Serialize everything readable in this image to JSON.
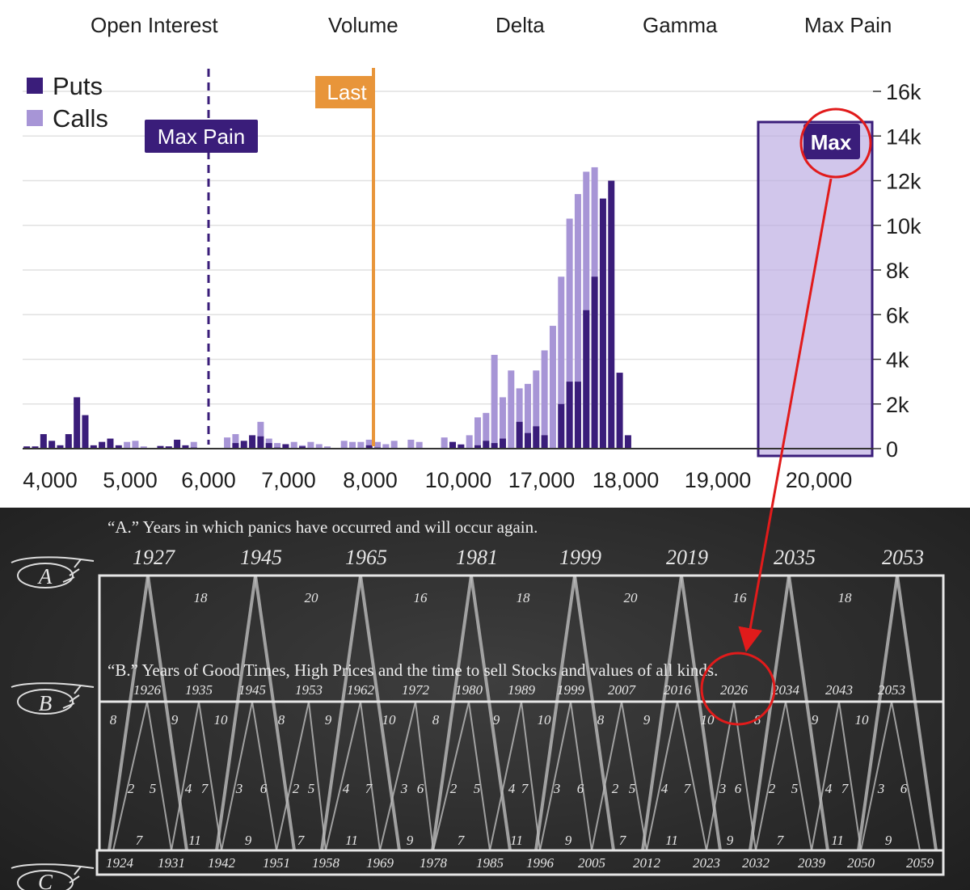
{
  "tabs": [
    "Open Interest",
    "Volume",
    "Delta",
    "Gamma",
    "Max Pain"
  ],
  "colors": {
    "puts": "#3a1d7a",
    "calls": "#a795d6",
    "last": "#e8953a",
    "highlight": "#6f52b8",
    "annotation": "#e11b1b"
  },
  "chart_data": {
    "type": "bar",
    "title": "Open Interest",
    "legend": [
      {
        "name": "Puts",
        "color": "#3a1d7a"
      },
      {
        "name": "Calls",
        "color": "#a795d6"
      }
    ],
    "legend_position": "top-left",
    "x_tick_labels": [
      "4,000",
      "5,000",
      "6,000",
      "7,000",
      "8,000",
      "10,000",
      "17,000",
      "18,000",
      "19,000",
      "20,000"
    ],
    "y_ticks": [
      0,
      2000,
      4000,
      6000,
      8000,
      10000,
      12000,
      14000,
      16000
    ],
    "y_tick_labels": [
      "0",
      "2k",
      "4k",
      "6k",
      "8k",
      "10k",
      "12k",
      "14k",
      "16k"
    ],
    "ylim": [
      0,
      16000
    ],
    "y_axis_side": "right",
    "grid": true,
    "markers": {
      "max_pain_label": "Max Pain",
      "last_label": "Last",
      "max_label": "Max"
    },
    "series": [
      {
        "name": "Puts",
        "values": [
          100,
          100,
          650,
          350,
          150,
          650,
          2300,
          1500,
          150,
          300,
          450,
          150,
          0,
          0,
          0,
          0,
          120,
          100,
          400,
          150,
          50,
          0,
          0,
          0,
          0,
          250,
          350,
          600,
          550,
          250,
          50,
          200,
          0,
          100,
          0,
          0,
          0,
          0,
          0,
          0,
          0,
          150,
          50,
          0,
          0,
          0,
          0,
          0,
          0,
          0,
          0,
          300,
          180,
          0,
          150,
          350,
          250,
          450,
          0,
          1200,
          700,
          1000,
          600,
          0,
          2000,
          3000,
          3000,
          6200,
          7700,
          11200,
          12000,
          3400,
          600
        ]
      },
      {
        "name": "Calls",
        "values": [
          50,
          0,
          200,
          250,
          150,
          200,
          300,
          150,
          100,
          300,
          300,
          0,
          300,
          350,
          100,
          0,
          0,
          100,
          0,
          0,
          300,
          0,
          0,
          0,
          500,
          650,
          150,
          150,
          1200,
          450,
          250,
          0,
          300,
          150,
          300,
          200,
          100,
          0,
          350,
          300,
          300,
          400,
          300,
          200,
          350,
          0,
          400,
          300,
          0,
          0,
          500,
          300,
          200,
          600,
          1400,
          1600,
          4200,
          2300,
          3500,
          2700,
          2900,
          3500,
          4400,
          5500,
          7700,
          10300,
          11400,
          12400,
          12600,
          6000,
          0,
          0,
          0
        ]
      }
    ]
  },
  "image": {
    "row_a": {
      "pointer": "A",
      "caption": "“A.” Years in which panics have occurred and will occur again.",
      "years": [
        "1927",
        "1945",
        "1965",
        "1981",
        "1999",
        "2019",
        "2035",
        "2053"
      ],
      "intervals": [
        "18",
        "20",
        "16",
        "18",
        "20",
        "16",
        "18"
      ]
    },
    "row_b": {
      "pointer": "B",
      "caption": "“B.” Years of Good Times, High Prices and the time to sell Stocks and values of all kinds.",
      "years": [
        "1926",
        "1935",
        "1945",
        "1953",
        "1962",
        "1972",
        "1980",
        "1989",
        "1999",
        "2007",
        "2016",
        "2026",
        "2034",
        "2043",
        "2053"
      ],
      "side_numbers": [
        "8",
        "9",
        "10",
        "8",
        "9",
        "10",
        "8",
        "9",
        "10",
        "8",
        "9",
        "10",
        "8",
        "9",
        "10"
      ],
      "inner_numbers": [
        "2",
        "5",
        "4",
        "7",
        "3",
        "6",
        "2",
        "5",
        "4",
        "7",
        "3",
        "6",
        "2",
        "5",
        "4",
        "7",
        "3",
        "6",
        "2",
        "5",
        "4",
        "7",
        "3",
        "6",
        "2",
        "5",
        "4",
        "7",
        "3",
        "6"
      ],
      "bottom_numbers": [
        "7",
        "11",
        "9",
        "7",
        "11",
        "9",
        "7",
        "11",
        "9",
        "7",
        "11",
        "9",
        "7",
        "11",
        "9"
      ]
    },
    "row_c": {
      "pointer": "C",
      "years": [
        "1924",
        "1931",
        "1942",
        "1951",
        "1958",
        "1969",
        "1978",
        "1985",
        "1996",
        "2005",
        "2012",
        "2023",
        "2032",
        "2039",
        "2050",
        "2059"
      ]
    }
  }
}
